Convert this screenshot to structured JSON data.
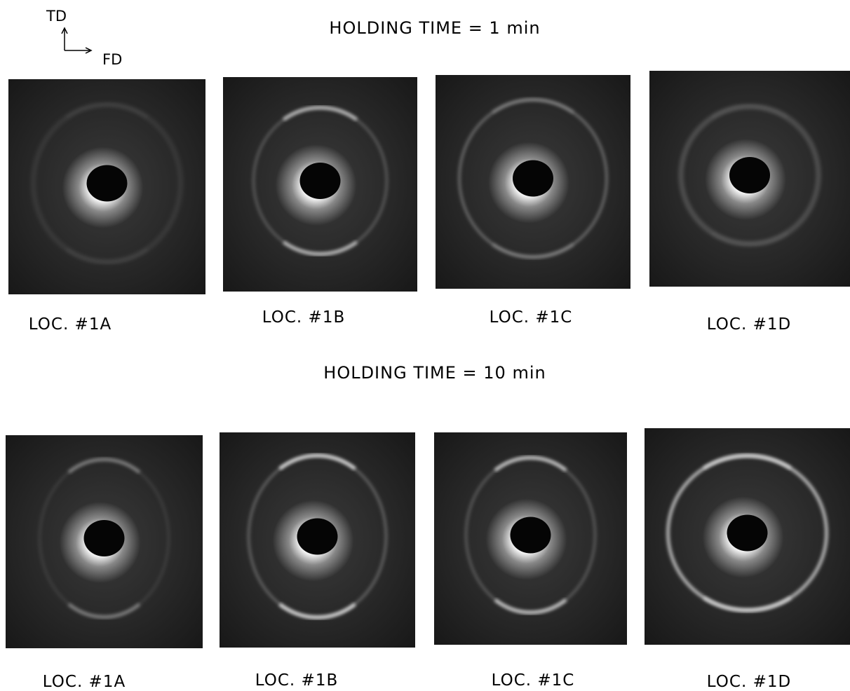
{
  "orientation": {
    "vertical": "TD",
    "horizontal": "FD"
  },
  "panels": [
    {
      "title": "HOLDING TIME = 1 min",
      "images": [
        {
          "label": "LOC. #1A"
        },
        {
          "label": "LOC. #1B"
        },
        {
          "label": "LOC. #1C"
        },
        {
          "label": "LOC. #1D"
        }
      ]
    },
    {
      "title": "HOLDING TIME = 10 min",
      "images": [
        {
          "label": "LOC. #1A"
        },
        {
          "label": "LOC. #1B"
        },
        {
          "label": "LOC. #1C"
        },
        {
          "label": "LOC. #1D"
        }
      ]
    }
  ]
}
